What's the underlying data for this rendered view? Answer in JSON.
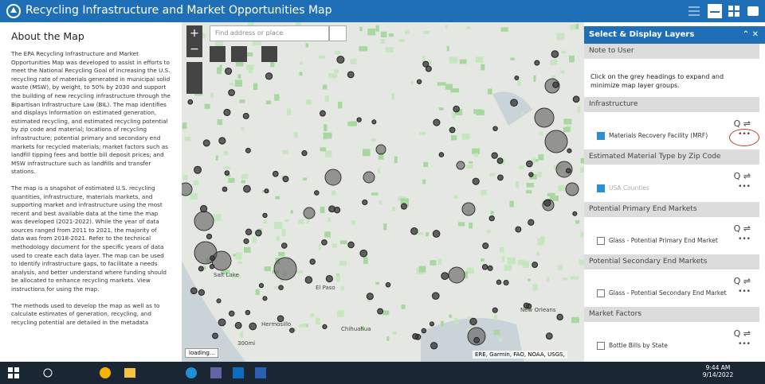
{
  "header": {
    "title": "Recycling Infrastructure and Market Opportunities Map"
  },
  "about": {
    "title": "About the Map",
    "paragraphs": [
      "The EPA Recycling Infrastructure and Market Opportunities Map was developed to assist in efforts to meet the National Recycling Goal of increasing the U.S. recycling rate of materials generated in municipal solid waste (MSW), by weight, to 50% by 2030 and support the building of new recycling infrastructure through the Bipartisan Infrastructure Law (BIL). The map identifies and displays information on estimated generation, estimated recycling, and estimated recycling potential by zip code and material; locations of recycling infrastructure; potential primary and secondary end markets for recycled materials; market factors such as landfill tipping fees and bottle bill deposit prices; and MSW infrastructure such as landfills and transfer stations.",
      "The map is a snapshot of estimated U.S. recycling quantities, infrastructure, materials markets, and supporting market and infrastructure using the most recent and best available data at the time the map was developed (2021-2022). While the year of data sources ranged from 2011 to 2021, the majority of data was from 2018-2021. Refer to the technical methodology document for the specific years of data used to create each data layer. The map can be used to identify infrastructure gaps, to facilitate a needs analysis, and better understand where funding should be allocated to enhance recycling markets. View instructions for using the map.",
      "The methods used to develop the map as well as to calculate estimates of generation, recycling, and recycling potential are detailed in the metadata"
    ]
  },
  "map": {
    "search_placeholder": "Find address or place",
    "labels": [
      "Salt Lake",
      "El Paso",
      "Hermosillo",
      "Chihuahua",
      "New Orleans"
    ],
    "scale": "300mi",
    "status": "loading...",
    "attribution": "ERE, Garmin, FAO, NOAA, USGS,"
  },
  "layers": {
    "title": "Select & Display Layers",
    "note_heading": "Note to User",
    "note": "Click on the grey headings to expand and minimize map layer groups.",
    "groups": [
      {
        "heading": "Infrastructure",
        "layer": "Materials Recovery Facility (MRF)"
      },
      {
        "heading": "Estimated Material Type by Zip Code",
        "layer": "USA Counties"
      },
      {
        "heading": "Potential Primary End Markets",
        "layer": "Glass - Potential Primary End Market"
      },
      {
        "heading": "Potential Secondary End Markets",
        "layer": "Glass - Potential Secondary End Market"
      },
      {
        "heading": "Market Factors",
        "layer": "Bottle Bills by State"
      }
    ]
  },
  "taskbar": {
    "time": "9:44 AM",
    "date": "9/14/2022"
  }
}
